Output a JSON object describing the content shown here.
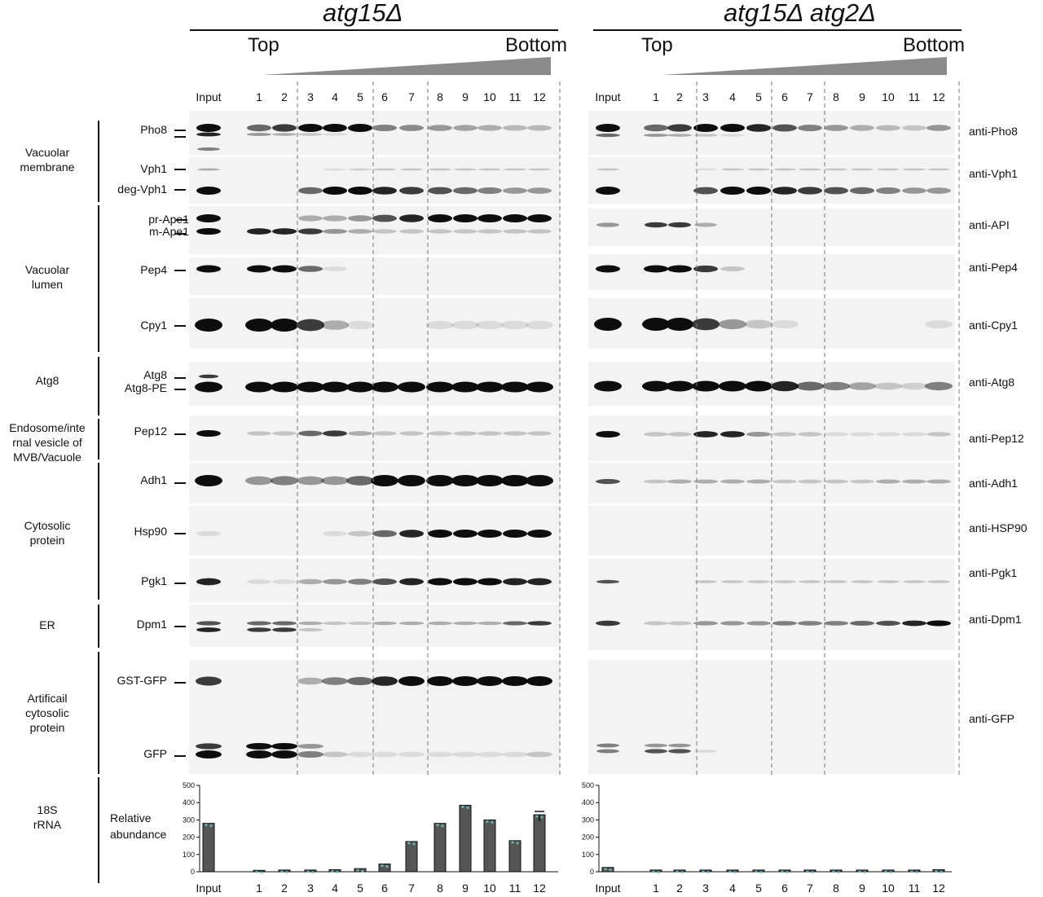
{
  "left_panel": {
    "title": "atg15Δ",
    "top": "Top",
    "bottom": "Bottom"
  },
  "right_panel": {
    "title": "atg15Δ atg2Δ",
    "top": "Top",
    "bottom": "Bottom"
  },
  "lane_labels": [
    "Input",
    "1",
    "2",
    "3",
    "4",
    "5",
    "6",
    "7",
    "8",
    "9",
    "10",
    "11",
    "12"
  ],
  "groups": [
    {
      "id": "vacmem",
      "label": "Vacuolar\nmembrane"
    },
    {
      "id": "vaclum",
      "label": "Vacuolar\nlumen"
    },
    {
      "id": "atg8",
      "label": "Atg8"
    },
    {
      "id": "endo",
      "label": "Endosome/inte\nrnal vesicle of\nMVB/Vacuole"
    },
    {
      "id": "cyto",
      "label": "Cytosolic\nprotein"
    },
    {
      "id": "er",
      "label": "ER"
    },
    {
      "id": "artif",
      "label": "Artificail\ncytosolic\nprotein"
    },
    {
      "id": "rrna",
      "label": "18S\nrRNA"
    }
  ],
  "band_labels": [
    "Pho8",
    "Vph1",
    "deg-Vph1",
    "pr-Ape1",
    "m-Ape1",
    "Pep4",
    "Cpy1",
    "Atg8",
    "Atg8-PE",
    "Pep12",
    "Adh1",
    "Hsp90",
    "Pgk1",
    "Dpm1",
    "GST-GFP",
    "GFP"
  ],
  "antibodies": [
    "anti-Pho8",
    "anti-Vph1",
    "anti-API",
    "anti-Pep4",
    "anti-Cpy1",
    "anti-Atg8",
    "anti-Pep12",
    "anti-Adh1",
    "anti-HSP90",
    "anti-Pgk1",
    "anti-Dpm1",
    "anti-GFP"
  ],
  "relative_abundance_label": "Relative\nabundance",
  "chart_data": [
    {
      "type": "bar",
      "title": "atg15Δ",
      "ylabel": "Relative abundance",
      "ylim": [
        0,
        500
      ],
      "yticks": [
        0,
        100,
        200,
        300,
        400,
        500
      ],
      "categories": [
        "Input",
        "1",
        "2",
        "3",
        "4",
        "5",
        "6",
        "7",
        "8",
        "9",
        "10",
        "11",
        "12"
      ],
      "values": [
        280,
        8,
        10,
        10,
        12,
        18,
        45,
        175,
        280,
        385,
        300,
        180,
        330
      ]
    },
    {
      "type": "bar",
      "title": "atg15Δ atg2Δ",
      "ylabel": "Relative abundance",
      "ylim": [
        0,
        500
      ],
      "yticks": [
        0,
        100,
        200,
        300,
        400,
        500
      ],
      "categories": [
        "Input",
        "1",
        "2",
        "3",
        "4",
        "5",
        "6",
        "7",
        "8",
        "9",
        "10",
        "11",
        "12"
      ],
      "values": [
        25,
        10,
        10,
        10,
        10,
        10,
        10,
        10,
        10,
        10,
        10,
        10,
        12
      ]
    }
  ],
  "colors": {
    "band": "#0d0d0d",
    "bar": "#555555",
    "wedge": "#8a8a8a",
    "dash": "#777777"
  }
}
